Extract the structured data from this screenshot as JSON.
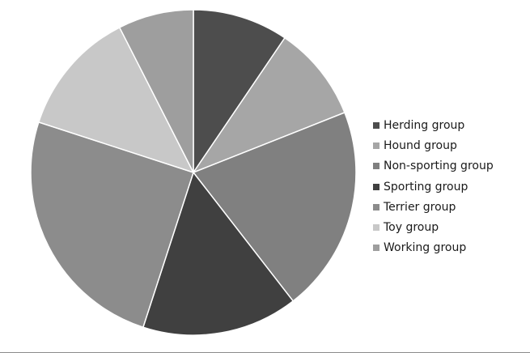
{
  "chart_data": {
    "type": "pie",
    "title": "",
    "legend_position": "right",
    "series": [
      {
        "values": [
          9.5,
          9.5,
          20.5,
          15.5,
          25.0,
          12.5,
          7.5
        ],
        "colors": [
          "#4d4d4d",
          "#a6a6a6",
          "#808080",
          "#404040",
          "#8c8c8c",
          "#c8c8c8",
          "#9e9e9e"
        ]
      }
    ],
    "categories": [
      "Herding group",
      "Hound group",
      "Non-sporting group",
      "Sporting group",
      "Terrier group",
      "Toy group",
      "Working group"
    ]
  }
}
